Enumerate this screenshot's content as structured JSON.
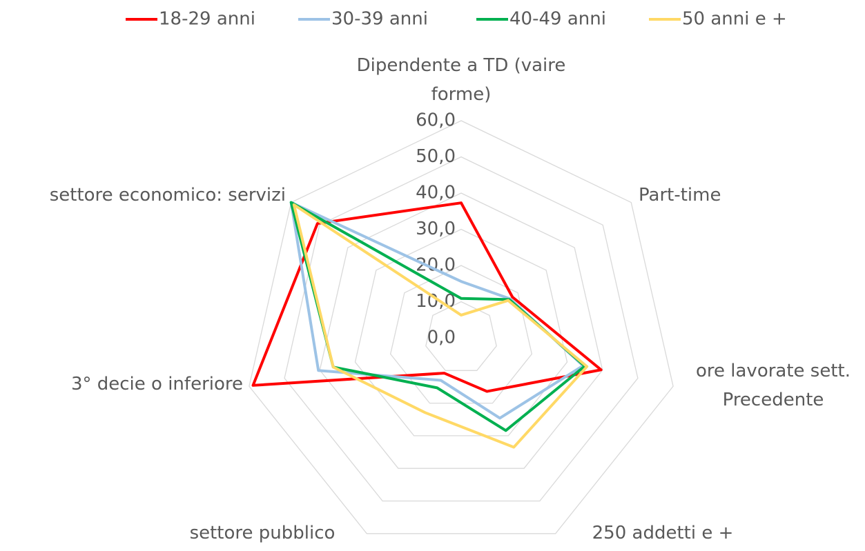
{
  "chart_data": {
    "type": "radar",
    "categories": [
      "Dipendente a TD (vaire forme)",
      "Part-time",
      "ore lavorate sett. Precedente",
      "250 addetti  e +",
      "settore pubblico",
      "3° decie o inferiore",
      "settore economico: servizi"
    ],
    "series": [
      {
        "name": "18-29 anni",
        "color": "#ff0000",
        "values": [
          37.3,
          18.1,
          39.6,
          16.4,
          10.8,
          58.9,
          50.7
        ]
      },
      {
        "name": "30-39 anni",
        "color": "#9dc3e6",
        "values": [
          15.6,
          17.3,
          34.5,
          24.6,
          13.0,
          40.4,
          60.0
        ]
      },
      {
        "name": "40-49 anni",
        "color": "#00b050",
        "values": [
          10.9,
          17.0,
          35.0,
          28.4,
          15.3,
          36.2,
          60.0
        ]
      },
      {
        "name": "50 anni e +",
        "color": "#ffd966",
        "values": [
          6.3,
          16.6,
          35.6,
          33.5,
          22.9,
          36.2,
          59.0
        ]
      }
    ],
    "ylim": [
      0,
      60
    ],
    "yticks": [
      {
        "value": 0,
        "label": "0,0"
      },
      {
        "value": 10,
        "label": "10,0"
      },
      {
        "value": 20,
        "label": "20,0"
      },
      {
        "value": 30,
        "label": "30,0"
      },
      {
        "value": 40,
        "label": "40,0"
      },
      {
        "value": 50,
        "label": "50,0"
      },
      {
        "value": 60,
        "label": "60,0"
      }
    ],
    "grid": true,
    "legend": "top"
  }
}
